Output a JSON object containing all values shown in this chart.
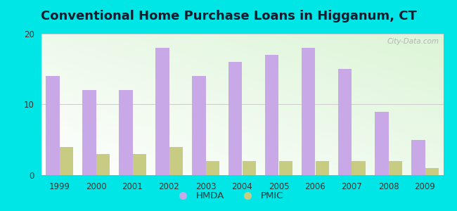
{
  "title": "Conventional Home Purchase Loans in Higganum, CT",
  "years": [
    1999,
    2000,
    2001,
    2002,
    2003,
    2004,
    2005,
    2006,
    2007,
    2008,
    2009
  ],
  "hmda": [
    14,
    12,
    12,
    18,
    14,
    16,
    17,
    18,
    15,
    9,
    5
  ],
  "pmic": [
    4,
    3,
    3,
    4,
    2,
    2,
    2,
    2,
    2,
    2,
    1
  ],
  "hmda_color": "#c9a8e8",
  "pmic_color": "#c8cc82",
  "ylim": [
    0,
    20
  ],
  "yticks": [
    0,
    10,
    20
  ],
  "background_outer": "#00e5e5",
  "grid_color": "#cccccc",
  "title_fontsize": 13,
  "bar_width": 0.38,
  "watermark": "City-Data.com",
  "title_color": "#1a1a2e",
  "tick_color": "#333333"
}
